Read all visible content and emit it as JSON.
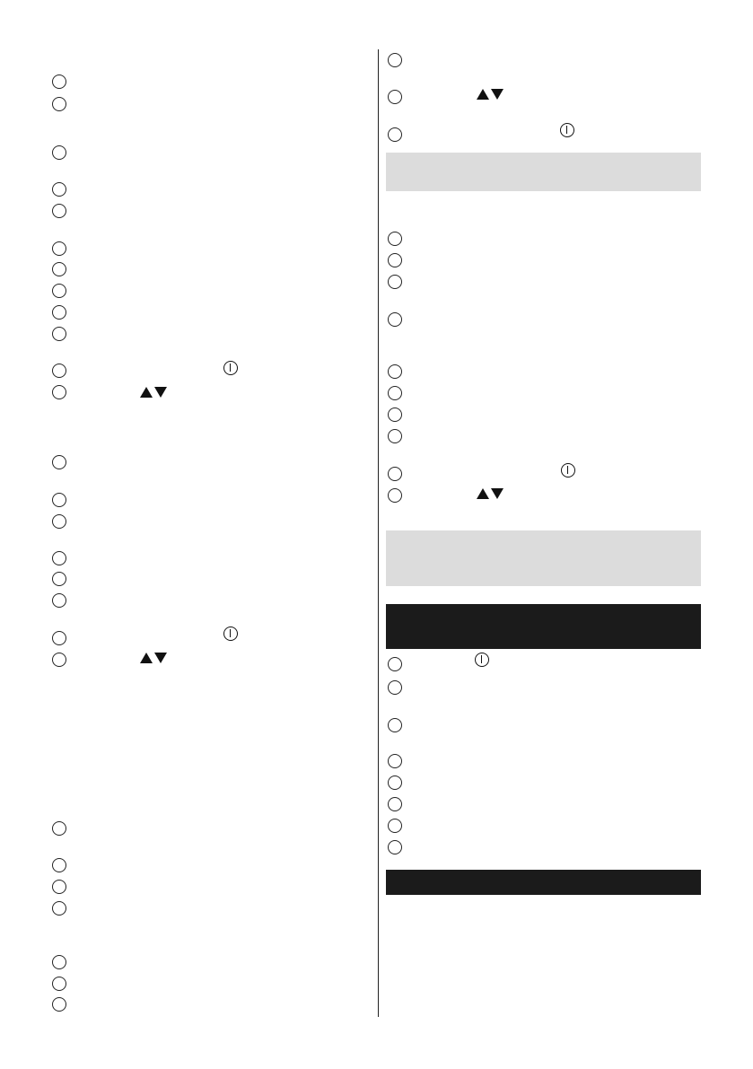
{
  "icons": {
    "bullet": "circle-icon",
    "power": "power-icon",
    "arrows": "up-down-arrows-icon"
  },
  "colors": {
    "grey_band": "#dcdcdc",
    "black_band": "#1b1b1b"
  }
}
